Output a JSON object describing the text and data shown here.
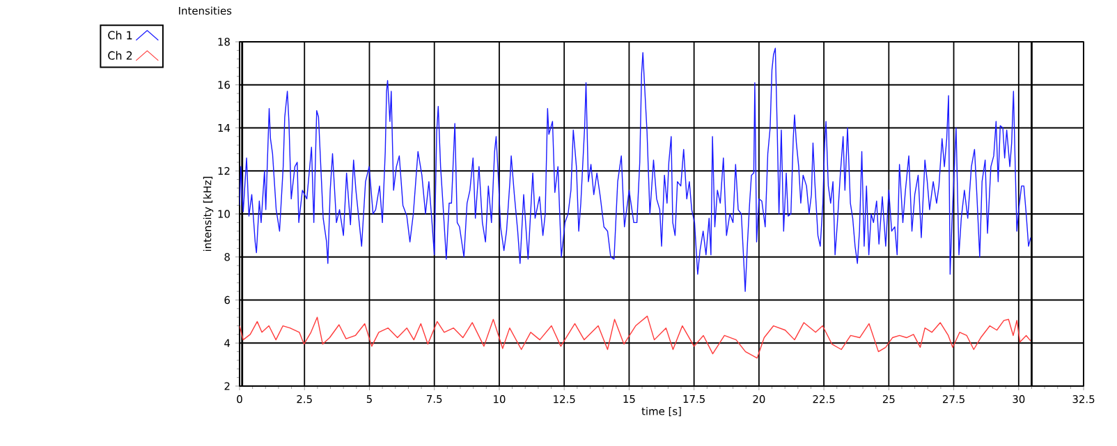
{
  "chart_data": {
    "type": "line",
    "title": "Intensities",
    "xlabel": "time [s]",
    "ylabel": "intensity [kHz]",
    "xlim": [
      0,
      32.5
    ],
    "ylim": [
      2,
      18
    ],
    "xticks": [
      0,
      2.5,
      5,
      7.5,
      10,
      12.5,
      15,
      17.5,
      20,
      22.5,
      25,
      27.5,
      30,
      32.5
    ],
    "yticks": [
      2,
      4,
      6,
      8,
      10,
      12,
      14,
      16,
      18
    ],
    "grid": true,
    "legend": "top left",
    "ref_lines": [
      {
        "axis": "x",
        "value": 0.1,
        "color": "#000000"
      },
      {
        "axis": "x",
        "value": 30.5,
        "color": "#000000"
      }
    ],
    "series": [
      {
        "name": "Ch 1",
        "color": "#1a1aff",
        "x": [
          0.0,
          0.05,
          0.14,
          0.27,
          0.36,
          0.47,
          0.6,
          0.65,
          0.76,
          0.83,
          0.96,
          1.01,
          1.14,
          1.19,
          1.27,
          1.41,
          1.54,
          1.68,
          1.74,
          1.84,
          1.9,
          1.99,
          2.13,
          2.22,
          2.28,
          2.42,
          2.59,
          2.77,
          2.86,
          2.97,
          3.04,
          3.22,
          3.35,
          3.4,
          3.49,
          3.58,
          3.73,
          3.85,
          4.0,
          4.12,
          4.27,
          4.39,
          4.48,
          4.7,
          4.85,
          4.99,
          5.14,
          5.24,
          5.39,
          5.5,
          5.61,
          5.66,
          5.7,
          5.79,
          5.84,
          5.93,
          6.04,
          6.15,
          6.29,
          6.44,
          6.56,
          6.69,
          6.87,
          7.02,
          7.16,
          7.29,
          7.41,
          7.5,
          7.59,
          7.65,
          7.74,
          7.83,
          7.96,
          8.07,
          8.16,
          8.29,
          8.38,
          8.47,
          8.64,
          8.76,
          8.87,
          8.99,
          9.08,
          9.22,
          9.35,
          9.47,
          9.58,
          9.7,
          9.82,
          9.88,
          9.96,
          10.05,
          10.18,
          10.28,
          10.41,
          10.46,
          10.58,
          10.71,
          10.8,
          10.94,
          11.11,
          11.29,
          11.38,
          11.55,
          11.68,
          11.77,
          11.86,
          11.91,
          12.05,
          12.14,
          12.26,
          12.39,
          12.53,
          12.65,
          12.76,
          12.85,
          12.97,
          13.06,
          13.14,
          13.29,
          13.34,
          13.43,
          13.53,
          13.64,
          13.76,
          13.89,
          14.03,
          14.17,
          14.29,
          14.42,
          14.56,
          14.7,
          14.82,
          15.0,
          15.18,
          15.3,
          15.41,
          15.48,
          15.53,
          15.62,
          15.69,
          15.8,
          15.94,
          16.06,
          16.18,
          16.25,
          16.36,
          16.46,
          16.53,
          16.62,
          16.68,
          16.77,
          16.86,
          16.99,
          17.1,
          17.22,
          17.32,
          17.41,
          17.52,
          17.64,
          17.73,
          17.85,
          17.96,
          18.08,
          18.15,
          18.21,
          18.3,
          18.4,
          18.51,
          18.63,
          18.75,
          18.88,
          19.0,
          19.1,
          19.2,
          19.32,
          19.41,
          19.47,
          19.56,
          19.64,
          19.71,
          19.8,
          19.84,
          19.91,
          20.0,
          20.11,
          20.24,
          20.34,
          20.43,
          20.5,
          20.56,
          20.63,
          20.7,
          20.77,
          20.86,
          20.95,
          21.05,
          21.12,
          21.23,
          21.32,
          21.37,
          21.44,
          21.53,
          21.61,
          21.7,
          21.83,
          21.93,
          22.02,
          22.08,
          22.15,
          22.27,
          22.36,
          22.46,
          22.53,
          22.58,
          22.67,
          22.76,
          22.85,
          22.93,
          23.02,
          23.13,
          23.24,
          23.31,
          23.41,
          23.52,
          23.61,
          23.7,
          23.79,
          23.87,
          23.96,
          24.05,
          24.14,
          24.23,
          24.32,
          24.41,
          24.53,
          24.62,
          24.75,
          24.88,
          25.0,
          25.11,
          25.23,
          25.32,
          25.41,
          25.54,
          25.64,
          25.77,
          25.89,
          26.0,
          26.13,
          26.25,
          26.39,
          26.48,
          26.57,
          26.71,
          26.84,
          26.93,
          27.05,
          27.14,
          27.23,
          27.3,
          27.36,
          27.43,
          27.5,
          27.59,
          27.7,
          27.79,
          27.91,
          28.04,
          28.18,
          28.3,
          28.39,
          28.5,
          28.59,
          28.71,
          28.8,
          28.93,
          29.04,
          29.13,
          29.21,
          29.29,
          29.39,
          29.46,
          29.54,
          29.66,
          29.73,
          29.8,
          29.86,
          29.93,
          30.0,
          30.11,
          30.2,
          30.29,
          30.38,
          30.46
        ],
        "values": [
          10.4,
          12.2,
          10.1,
          12.6,
          9.9,
          10.9,
          8.7,
          8.2,
          10.6,
          9.6,
          12.0,
          10.2,
          14.9,
          13.5,
          12.8,
          10.2,
          9.2,
          12.2,
          14.5,
          15.7,
          14.3,
          10.7,
          12.2,
          12.4,
          9.6,
          11.1,
          10.7,
          13.1,
          9.6,
          14.8,
          14.5,
          9.8,
          8.7,
          7.7,
          11.1,
          12.8,
          9.6,
          10.2,
          9.0,
          11.9,
          9.5,
          12.5,
          11.1,
          8.5,
          11.5,
          12.2,
          10.0,
          10.2,
          11.3,
          9.6,
          12.9,
          15.7,
          16.2,
          14.3,
          15.7,
          11.1,
          12.2,
          12.7,
          10.4,
          9.9,
          8.7,
          10.0,
          12.9,
          11.8,
          10.0,
          11.5,
          9.6,
          8.1,
          13.8,
          15.0,
          12.2,
          10.5,
          7.9,
          10.5,
          10.5,
          14.2,
          9.6,
          9.4,
          8.0,
          10.5,
          11.1,
          12.6,
          9.8,
          12.2,
          9.6,
          8.7,
          11.3,
          9.6,
          12.9,
          13.6,
          11.8,
          9.4,
          8.3,
          9.2,
          11.5,
          12.7,
          10.9,
          9.2,
          7.7,
          10.9,
          7.9,
          11.9,
          9.8,
          10.8,
          9.0,
          10.0,
          14.9,
          13.7,
          14.3,
          11.0,
          12.2,
          8.0,
          9.6,
          10.0,
          11.1,
          13.9,
          12.2,
          9.2,
          10.5,
          14.1,
          16.1,
          11.5,
          12.3,
          10.9,
          11.9,
          10.8,
          9.4,
          9.2,
          8.0,
          7.9,
          11.5,
          12.7,
          9.4,
          11.1,
          9.6,
          9.6,
          12.4,
          16.5,
          17.5,
          15.4,
          13.8,
          10.0,
          12.5,
          10.7,
          10.2,
          8.5,
          11.8,
          10.5,
          12.4,
          13.6,
          9.6,
          9.0,
          11.5,
          11.3,
          13.0,
          10.7,
          11.5,
          10.2,
          9.6,
          7.2,
          8.3,
          9.2,
          8.1,
          9.8,
          8.1,
          13.6,
          9.4,
          11.1,
          10.5,
          12.6,
          9.0,
          10.0,
          9.6,
          12.3,
          10.2,
          10.0,
          7.9,
          6.4,
          8.7,
          10.5,
          11.8,
          11.9,
          16.1,
          8.7,
          10.7,
          10.6,
          9.4,
          12.8,
          14.0,
          16.7,
          17.4,
          17.7,
          14.1,
          10.0,
          13.9,
          9.2,
          11.9,
          9.9,
          10.0,
          13.5,
          14.6,
          13.3,
          12.2,
          10.5,
          11.8,
          11.3,
          10.0,
          10.9,
          13.3,
          11.5,
          9.0,
          8.5,
          10.5,
          13.3,
          14.3,
          11.3,
          10.5,
          11.5,
          8.1,
          9.6,
          11.8,
          13.6,
          11.1,
          14.0,
          10.5,
          9.8,
          8.5,
          7.7,
          9.2,
          12.9,
          8.5,
          11.3,
          8.1,
          10.0,
          9.6,
          10.6,
          8.6,
          10.8,
          8.5,
          11.1,
          9.2,
          9.4,
          8.1,
          12.3,
          9.6,
          11.1,
          12.7,
          9.2,
          10.9,
          11.8,
          8.9,
          12.5,
          11.5,
          10.2,
          11.5,
          10.5,
          11.3,
          13.5,
          12.2,
          13.5,
          15.5,
          7.2,
          9.6,
          11.5,
          14.0,
          8.1,
          9.8,
          11.1,
          9.8,
          12.2,
          13.0,
          10.9,
          8.0,
          11.5,
          12.5,
          9.1,
          12.2,
          12.7,
          14.3,
          11.5,
          14.1,
          14.0,
          12.6,
          13.9,
          12.2,
          13.3,
          15.7,
          12.6,
          9.2,
          10.2,
          11.3,
          11.3,
          10.0,
          8.5,
          8.9
        ]
      },
      {
        "name": "Ch 2",
        "color": "#ff3b3b",
        "x": [
          0.0,
          0.14,
          0.41,
          0.68,
          0.86,
          1.13,
          1.4,
          1.67,
          1.94,
          2.3,
          2.48,
          2.75,
          2.99,
          3.2,
          3.47,
          3.83,
          4.1,
          4.46,
          4.82,
          5.09,
          5.36,
          5.72,
          6.08,
          6.44,
          6.71,
          6.98,
          7.25,
          7.61,
          7.88,
          8.24,
          8.6,
          8.96,
          9.41,
          9.77,
          10.13,
          10.4,
          10.85,
          11.21,
          11.56,
          12.01,
          12.37,
          12.91,
          13.27,
          13.81,
          14.17,
          14.44,
          14.8,
          15.25,
          15.7,
          15.97,
          16.42,
          16.69,
          17.05,
          17.5,
          17.86,
          18.22,
          18.67,
          19.12,
          19.48,
          19.93,
          20.2,
          20.56,
          21.01,
          21.37,
          21.73,
          22.18,
          22.45,
          22.81,
          23.17,
          23.53,
          23.88,
          24.24,
          24.6,
          24.88,
          25.14,
          25.41,
          25.68,
          25.95,
          26.21,
          26.39,
          26.66,
          26.98,
          27.29,
          27.46,
          27.73,
          28.0,
          28.27,
          28.54,
          28.89,
          29.16,
          29.43,
          29.61,
          29.79,
          29.93,
          30.05,
          30.29,
          30.46
        ],
        "values": [
          4.8,
          4.15,
          4.4,
          5.0,
          4.5,
          4.8,
          4.15,
          4.8,
          4.7,
          4.5,
          3.95,
          4.5,
          5.2,
          3.95,
          4.25,
          4.85,
          4.2,
          4.35,
          4.9,
          3.85,
          4.5,
          4.7,
          4.25,
          4.7,
          4.15,
          4.9,
          3.95,
          5.0,
          4.5,
          4.7,
          4.25,
          4.95,
          3.85,
          5.1,
          3.75,
          4.7,
          3.7,
          4.5,
          4.15,
          4.8,
          3.85,
          4.9,
          4.15,
          4.8,
          3.7,
          5.1,
          3.95,
          4.8,
          5.25,
          4.15,
          4.7,
          3.7,
          4.8,
          3.85,
          4.35,
          3.5,
          4.35,
          4.15,
          3.6,
          3.3,
          4.25,
          4.8,
          4.6,
          4.15,
          4.95,
          4.5,
          4.8,
          3.95,
          3.7,
          4.35,
          4.25,
          4.9,
          3.6,
          3.8,
          4.25,
          4.35,
          4.25,
          4.4,
          3.8,
          4.7,
          4.5,
          4.95,
          4.35,
          3.8,
          4.5,
          4.35,
          3.7,
          4.25,
          4.8,
          4.6,
          5.05,
          5.1,
          4.35,
          5.05,
          4.05,
          4.35,
          4.1
        ]
      }
    ]
  }
}
